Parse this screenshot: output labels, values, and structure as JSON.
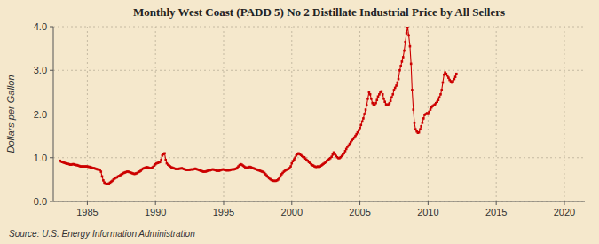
{
  "chart_data": {
    "type": "line",
    "title": "Monthly West Coast (PADD 5) No 2 Distillate Industrial Price by All Sellers",
    "ylabel": "Dollars per Gallon",
    "source": "Source: U.S. Energy Information Administration",
    "color": "#cc0000",
    "marker": "square",
    "line_style": "solid",
    "grid": true,
    "xlim": [
      1982.5,
      2021.5
    ],
    "ylim": [
      0.0,
      4.0
    ],
    "xticks": [
      1985,
      1990,
      1995,
      2000,
      2005,
      2010,
      2015,
      2020
    ],
    "yticks": [
      {
        "value": 0.0,
        "label": "0.0"
      },
      {
        "value": 1.0,
        "label": "1.0"
      },
      {
        "value": 2.0,
        "label": "2.0"
      },
      {
        "value": 3.0,
        "label": "3.0"
      },
      {
        "value": 4.0,
        "label": "4.0"
      }
    ],
    "x": [
      1983.0,
      1983.08,
      1983.17,
      1983.25,
      1983.33,
      1983.42,
      1983.5,
      1983.58,
      1983.67,
      1983.75,
      1983.83,
      1983.92,
      1984.0,
      1984.08,
      1984.17,
      1984.25,
      1984.33,
      1984.42,
      1984.5,
      1984.58,
      1984.67,
      1984.75,
      1984.83,
      1984.92,
      1985.0,
      1985.08,
      1985.17,
      1985.25,
      1985.33,
      1985.42,
      1985.5,
      1985.58,
      1985.67,
      1985.75,
      1985.83,
      1985.92,
      1986.0,
      1986.08,
      1986.17,
      1986.25,
      1986.33,
      1986.42,
      1986.5,
      1986.58,
      1986.67,
      1986.75,
      1986.83,
      1986.92,
      1987.0,
      1987.08,
      1987.17,
      1987.25,
      1987.33,
      1987.42,
      1987.5,
      1987.58,
      1987.67,
      1987.75,
      1987.83,
      1987.92,
      1988.0,
      1988.08,
      1988.17,
      1988.25,
      1988.33,
      1988.42,
      1988.5,
      1988.58,
      1988.67,
      1988.75,
      1988.83,
      1988.92,
      1989.0,
      1989.08,
      1989.17,
      1989.25,
      1989.33,
      1989.42,
      1989.5,
      1989.58,
      1989.67,
      1989.75,
      1989.83,
      1989.92,
      1990.0,
      1990.08,
      1990.17,
      1990.25,
      1990.33,
      1990.42,
      1990.5,
      1990.58,
      1990.67,
      1990.75,
      1990.83,
      1990.92,
      1991.0,
      1991.08,
      1991.17,
      1991.25,
      1991.33,
      1991.42,
      1991.5,
      1991.58,
      1991.67,
      1991.75,
      1991.83,
      1991.92,
      1992.0,
      1992.08,
      1992.17,
      1992.25,
      1992.33,
      1992.42,
      1992.5,
      1992.58,
      1992.67,
      1992.75,
      1992.83,
      1992.92,
      1993.0,
      1993.08,
      1993.17,
      1993.25,
      1993.33,
      1993.42,
      1993.5,
      1993.58,
      1993.67,
      1993.75,
      1993.83,
      1993.92,
      1994.0,
      1994.08,
      1994.17,
      1994.25,
      1994.33,
      1994.42,
      1994.5,
      1994.58,
      1994.67,
      1994.75,
      1994.83,
      1994.92,
      1995.0,
      1995.08,
      1995.17,
      1995.25,
      1995.33,
      1995.42,
      1995.5,
      1995.58,
      1995.67,
      1995.75,
      1995.83,
      1995.92,
      1996.0,
      1996.08,
      1996.17,
      1996.25,
      1996.33,
      1996.42,
      1996.5,
      1996.58,
      1996.67,
      1996.75,
      1996.83,
      1996.92,
      1997.0,
      1997.08,
      1997.17,
      1997.25,
      1997.33,
      1997.42,
      1997.5,
      1997.58,
      1997.67,
      1997.75,
      1997.83,
      1997.92,
      1998.0,
      1998.08,
      1998.17,
      1998.25,
      1998.33,
      1998.42,
      1998.5,
      1998.58,
      1998.67,
      1998.75,
      1998.83,
      1998.92,
      1999.0,
      1999.08,
      1999.17,
      1999.25,
      1999.33,
      1999.42,
      1999.5,
      1999.58,
      1999.67,
      1999.75,
      1999.83,
      1999.92,
      2000.0,
      2000.08,
      2000.17,
      2000.25,
      2000.33,
      2000.42,
      2000.5,
      2000.58,
      2000.67,
      2000.75,
      2000.83,
      2000.92,
      2001.0,
      2001.08,
      2001.17,
      2001.25,
      2001.33,
      2001.42,
      2001.5,
      2001.58,
      2001.67,
      2001.75,
      2001.83,
      2001.92,
      2002.0,
      2002.08,
      2002.17,
      2002.25,
      2002.33,
      2002.42,
      2002.5,
      2002.58,
      2002.67,
      2002.75,
      2002.83,
      2002.92,
      2003.0,
      2003.08,
      2003.17,
      2003.25,
      2003.33,
      2003.42,
      2003.5,
      2003.58,
      2003.67,
      2003.75,
      2003.83,
      2003.92,
      2004.0,
      2004.08,
      2004.17,
      2004.25,
      2004.33,
      2004.42,
      2004.5,
      2004.58,
      2004.67,
      2004.75,
      2004.83,
      2004.92,
      2005.0,
      2005.08,
      2005.17,
      2005.25,
      2005.33,
      2005.42,
      2005.5,
      2005.58,
      2005.67,
      2005.75,
      2005.83,
      2005.92,
      2006.0,
      2006.08,
      2006.17,
      2006.25,
      2006.33,
      2006.42,
      2006.5,
      2006.58,
      2006.67,
      2006.75,
      2006.83,
      2006.92,
      2007.0,
      2007.08,
      2007.17,
      2007.25,
      2007.33,
      2007.42,
      2007.5,
      2007.58,
      2007.67,
      2007.75,
      2007.83,
      2007.92,
      2008.0,
      2008.08,
      2008.17,
      2008.25,
      2008.33,
      2008.42,
      2008.5,
      2008.58,
      2008.67,
      2008.75,
      2008.83,
      2008.92,
      2009.0,
      2009.08,
      2009.17,
      2009.25,
      2009.33,
      2009.42,
      2009.5,
      2009.58,
      2009.67,
      2009.75,
      2009.83,
      2009.92,
      2010.0,
      2010.08,
      2010.17,
      2010.25,
      2010.33,
      2010.42,
      2010.5,
      2010.58,
      2010.67,
      2010.75,
      2010.83,
      2010.92,
      2011.0,
      2011.08,
      2011.17,
      2011.25,
      2011.33,
      2011.42,
      2011.5,
      2011.58,
      2011.67,
      2011.75,
      2011.83,
      2011.92,
      2012.0,
      2012.08
    ],
    "values": [
      0.93,
      0.91,
      0.9,
      0.89,
      0.88,
      0.87,
      0.86,
      0.86,
      0.85,
      0.84,
      0.84,
      0.85,
      0.85,
      0.84,
      0.83,
      0.83,
      0.82,
      0.81,
      0.8,
      0.8,
      0.8,
      0.8,
      0.8,
      0.8,
      0.8,
      0.79,
      0.79,
      0.78,
      0.77,
      0.76,
      0.76,
      0.75,
      0.74,
      0.73,
      0.73,
      0.72,
      0.68,
      0.57,
      0.48,
      0.43,
      0.42,
      0.4,
      0.4,
      0.41,
      0.43,
      0.45,
      0.47,
      0.5,
      0.52,
      0.54,
      0.55,
      0.57,
      0.58,
      0.6,
      0.62,
      0.63,
      0.65,
      0.66,
      0.67,
      0.68,
      0.68,
      0.67,
      0.66,
      0.65,
      0.64,
      0.63,
      0.63,
      0.64,
      0.65,
      0.67,
      0.68,
      0.7,
      0.73,
      0.75,
      0.76,
      0.77,
      0.78,
      0.78,
      0.77,
      0.76,
      0.76,
      0.77,
      0.79,
      0.82,
      0.85,
      0.87,
      0.88,
      0.89,
      0.9,
      0.95,
      1.05,
      1.08,
      1.1,
      0.95,
      0.87,
      0.84,
      0.82,
      0.8,
      0.78,
      0.77,
      0.76,
      0.75,
      0.74,
      0.74,
      0.74,
      0.75,
      0.75,
      0.76,
      0.75,
      0.74,
      0.73,
      0.72,
      0.72,
      0.72,
      0.72,
      0.73,
      0.73,
      0.73,
      0.74,
      0.75,
      0.74,
      0.73,
      0.72,
      0.71,
      0.7,
      0.69,
      0.68,
      0.68,
      0.68,
      0.69,
      0.7,
      0.71,
      0.71,
      0.72,
      0.73,
      0.73,
      0.72,
      0.71,
      0.7,
      0.7,
      0.7,
      0.71,
      0.72,
      0.73,
      0.73,
      0.72,
      0.71,
      0.71,
      0.71,
      0.71,
      0.72,
      0.73,
      0.73,
      0.73,
      0.74,
      0.75,
      0.77,
      0.8,
      0.83,
      0.85,
      0.84,
      0.82,
      0.8,
      0.78,
      0.77,
      0.77,
      0.78,
      0.79,
      0.78,
      0.77,
      0.76,
      0.75,
      0.74,
      0.73,
      0.72,
      0.71,
      0.7,
      0.69,
      0.68,
      0.67,
      0.65,
      0.62,
      0.59,
      0.56,
      0.53,
      0.51,
      0.49,
      0.48,
      0.47,
      0.47,
      0.47,
      0.48,
      0.5,
      0.53,
      0.57,
      0.62,
      0.65,
      0.68,
      0.7,
      0.72,
      0.73,
      0.74,
      0.76,
      0.8,
      0.87,
      0.92,
      0.96,
      1.0,
      1.05,
      1.08,
      1.1,
      1.08,
      1.06,
      1.04,
      1.02,
      1.01,
      0.98,
      0.95,
      0.93,
      0.9,
      0.88,
      0.85,
      0.83,
      0.82,
      0.8,
      0.79,
      0.79,
      0.8,
      0.79,
      0.8,
      0.82,
      0.84,
      0.86,
      0.88,
      0.9,
      0.93,
      0.95,
      0.97,
      0.99,
      1.02,
      1.07,
      1.12,
      1.08,
      1.04,
      1.01,
      0.99,
      0.99,
      1.01,
      1.04,
      1.07,
      1.1,
      1.15,
      1.2,
      1.25,
      1.28,
      1.32,
      1.36,
      1.4,
      1.43,
      1.46,
      1.5,
      1.54,
      1.58,
      1.63,
      1.68,
      1.75,
      1.83,
      1.9,
      2.0,
      2.1,
      2.2,
      2.35,
      2.5,
      2.45,
      2.35,
      2.25,
      2.22,
      2.2,
      2.25,
      2.32,
      2.4,
      2.45,
      2.5,
      2.52,
      2.45,
      2.35,
      2.28,
      2.22,
      2.2,
      2.22,
      2.25,
      2.3,
      2.38,
      2.45,
      2.55,
      2.6,
      2.65,
      2.72,
      2.8,
      3.0,
      3.1,
      3.2,
      3.3,
      3.45,
      3.65,
      3.85,
      4.0,
      3.8,
      3.55,
      3.15,
      2.55,
      2.1,
      1.8,
      1.65,
      1.6,
      1.57,
      1.58,
      1.65,
      1.72,
      1.8,
      1.9,
      1.98,
      2.0,
      2.02,
      2.0,
      2.05,
      2.1,
      2.15,
      2.18,
      2.2,
      2.22,
      2.25,
      2.28,
      2.32,
      2.38,
      2.45,
      2.55,
      2.72,
      2.9,
      2.95,
      2.92,
      2.88,
      2.83,
      2.78,
      2.75,
      2.72,
      2.75,
      2.8,
      2.85,
      2.92
    ]
  }
}
